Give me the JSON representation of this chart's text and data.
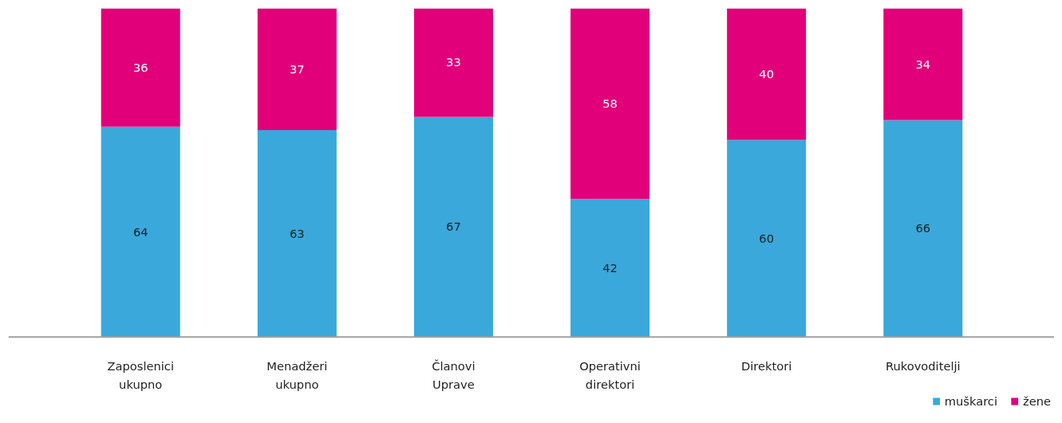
{
  "chart_data": {
    "type": "bar",
    "stacked": true,
    "categories": [
      "Zaposlenici ukupno",
      "Menadžeri ukupno",
      "Članovi Uprave",
      "Operativni direktori",
      "Direktori",
      "Rukovoditelji"
    ],
    "series": [
      {
        "name": "muškarci",
        "color": "#3aa8db",
        "values": [
          64,
          63,
          67,
          42,
          60,
          66
        ]
      },
      {
        "name": "žene",
        "color": "#e2007a",
        "values": [
          36,
          37,
          33,
          58,
          40,
          34
        ]
      }
    ],
    "data_labels": true,
    "legend": "bottom right"
  }
}
